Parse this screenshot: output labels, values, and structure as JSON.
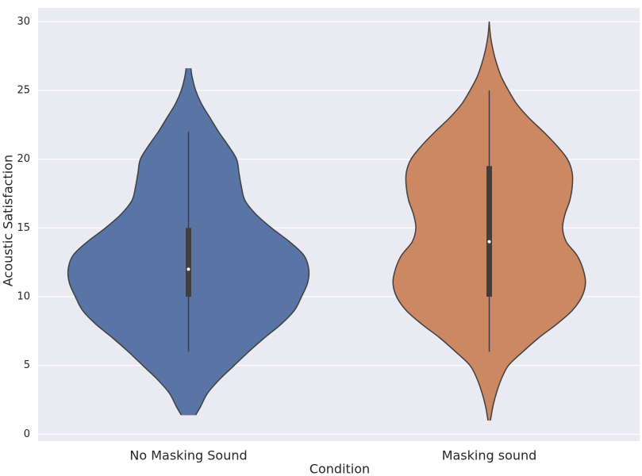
{
  "chart_data": {
    "type": "violin",
    "x_label": "Condition",
    "y_label": "Acoustic Satisfaction",
    "categories": [
      "No Masking Sound",
      "Masking sound"
    ],
    "ylim": [
      -0.5,
      31
    ],
    "yticks": [
      0,
      5,
      10,
      15,
      20,
      25,
      30
    ],
    "grid": true,
    "violins": [
      {
        "color": "#5875a5",
        "density_y": [
          1.4,
          2,
          3,
          4,
          5,
          6,
          7,
          8,
          9,
          10,
          11,
          12,
          13,
          14,
          15,
          16,
          17,
          18,
          19,
          20,
          21,
          22,
          23,
          24,
          25,
          26,
          26.6
        ],
        "density": [
          0.06,
          0.1,
          0.16,
          0.26,
          0.38,
          0.5,
          0.63,
          0.77,
          0.88,
          0.94,
          0.99,
          1.0,
          0.96,
          0.84,
          0.69,
          0.56,
          0.47,
          0.44,
          0.42,
          0.4,
          0.33,
          0.25,
          0.18,
          0.11,
          0.06,
          0.03,
          0.02
        ],
        "whisker_low": 6,
        "q1": 10,
        "median": 12,
        "q3": 15,
        "whisker_high": 22
      },
      {
        "color": "#cc8862",
        "density_y": [
          1,
          2,
          3,
          4,
          5,
          6,
          7,
          8,
          9,
          10,
          11,
          12,
          13,
          14,
          15,
          16,
          17,
          18,
          19,
          20,
          21,
          22,
          23,
          24,
          25,
          26,
          27,
          28,
          29,
          30
        ],
        "density": [
          0.01,
          0.03,
          0.06,
          0.1,
          0.16,
          0.28,
          0.41,
          0.56,
          0.69,
          0.77,
          0.8,
          0.78,
          0.73,
          0.64,
          0.61,
          0.63,
          0.67,
          0.69,
          0.69,
          0.65,
          0.56,
          0.45,
          0.33,
          0.23,
          0.16,
          0.1,
          0.06,
          0.03,
          0.01,
          0
        ],
        "whisker_low": 6,
        "q1": 10,
        "median": 14,
        "q3": 19.5,
        "whisker_high": 25
      }
    ]
  }
}
